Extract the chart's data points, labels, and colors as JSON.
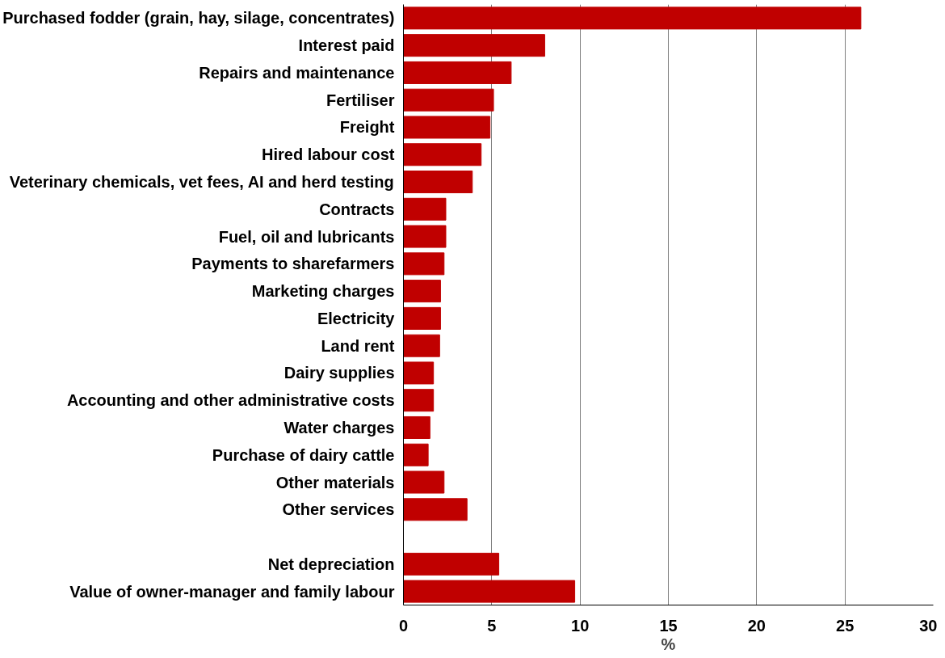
{
  "chart_data": {
    "type": "bar",
    "orientation": "horizontal",
    "xlabel": "%",
    "categories": [
      "Purchased fodder (grain, hay, silage, concentrates)",
      "Interest paid",
      "Repairs and maintenance",
      "Fertiliser",
      "Freight",
      "Hired labour cost",
      "Veterinary chemicals, vet fees, AI and herd testing",
      "Contracts",
      "Fuel, oil and lubricants",
      "Payments to sharefarmers",
      "Marketing charges",
      "Electricity",
      "Land rent",
      "Dairy supplies",
      "Accounting and other administrative costs",
      "Water charges",
      "Purchase of dairy cattle",
      "Other materials",
      "Other services",
      null,
      "Net depreciation",
      "Value of owner-manager and family labour"
    ],
    "values": [
      25.9,
      8.0,
      6.1,
      5.1,
      4.9,
      4.4,
      3.9,
      2.4,
      2.4,
      2.3,
      2.1,
      2.1,
      2.05,
      1.7,
      1.7,
      1.5,
      1.4,
      2.3,
      3.6,
      null,
      5.4,
      9.7
    ],
    "color": "#c00000",
    "xlim": [
      0,
      30
    ],
    "xticks": [
      0,
      5,
      10,
      15,
      20,
      25,
      30
    ],
    "grid": "x"
  }
}
